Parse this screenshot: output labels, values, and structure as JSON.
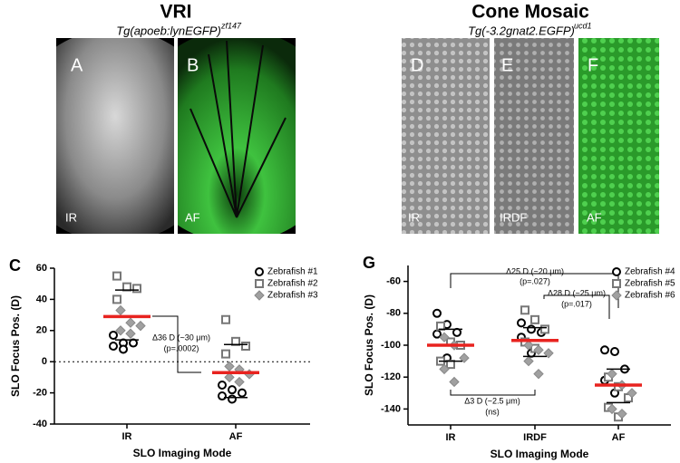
{
  "panels": {
    "vri": {
      "title": "VRI",
      "genotype": "Tg(apoeb:lynEGFP)",
      "allele": "zf147",
      "images": [
        {
          "letter": "A",
          "mode": "IR"
        },
        {
          "letter": "B",
          "mode": "AF"
        }
      ]
    },
    "cone": {
      "title": "Cone Mosaic",
      "genotype": "Tg(-3.2gnat2.EGFP)",
      "allele": "ucd1",
      "images": [
        {
          "letter": "D",
          "mode": "IR"
        },
        {
          "letter": "E",
          "mode": "IRDF"
        },
        {
          "letter": "F",
          "mode": "AF"
        }
      ]
    }
  },
  "chart_data": [
    {
      "type": "strip",
      "panel": "C",
      "ylabel": "SLO Focus Pos. (D)",
      "xlabel": "SLO Imaging Mode",
      "categories": [
        "IR",
        "AF"
      ],
      "ylim": [
        -40,
        60
      ],
      "yticks": [
        -40,
        -20,
        0,
        20,
        40,
        60
      ],
      "zero_line": true,
      "legend_position": "upper right",
      "series": [
        {
          "name": "Zebrafish #1",
          "marker": "circle",
          "color": "#000000",
          "values": [
            [
              17,
              12,
              12,
              10,
              8
            ],
            [
              -15,
              -18,
              -20,
              -22,
              -24
            ]
          ]
        },
        {
          "name": "Zebrafish #2",
          "marker": "square",
          "color": "#777777",
          "values": [
            [
              55,
              48,
              47,
              40
            ],
            [
              27,
              13,
              10,
              5
            ]
          ]
        },
        {
          "name": "Zebrafish #3",
          "marker": "diamond",
          "color": "#a0a0a0",
          "values": [
            [
              33,
              25,
              23,
              20,
              18
            ],
            [
              -3,
              -5,
              -8,
              -10,
              -13
            ]
          ]
        }
      ],
      "means": [
        29,
        -7
      ],
      "error_bars": [
        [
          14,
          46
        ],
        [
          -23,
          11
        ]
      ],
      "annotations": [
        "Δ36 D (~30 μm)",
        "(p=.0002)"
      ]
    },
    {
      "type": "strip",
      "panel": "G",
      "ylabel": "SLO Focus Pos. (D)",
      "xlabel": "SLO Imaging Mode",
      "categories": [
        "IR",
        "IRDF",
        "AF"
      ],
      "ylim": [
        -150,
        -50
      ],
      "yticks": [
        -140,
        -120,
        -100,
        -80,
        -60
      ],
      "zero_line": false,
      "legend_position": "upper right",
      "series": [
        {
          "name": "Zebrafish #4",
          "marker": "circle",
          "color": "#000000",
          "values": [
            [
              -80,
              -87,
              -92,
              -93,
              -108
            ],
            [
              -86,
              -90,
              -92,
              -95,
              -105
            ],
            [
              -103,
              -104,
              -115,
              -122,
              -130
            ]
          ]
        },
        {
          "name": "Zebrafish #5",
          "marker": "square",
          "color": "#777777",
          "values": [
            [
              -88,
              -98,
              -100,
              -110,
              -112
            ],
            [
              -78,
              -84,
              -90,
              -98,
              -102
            ],
            [
              -120,
              -126,
              -133,
              -139,
              -145
            ]
          ]
        },
        {
          "name": "Zebrafish #6",
          "marker": "diamond",
          "color": "#a0a0a0",
          "values": [
            [
              -95,
              -100,
              -108,
              -115,
              -123
            ],
            [
              -100,
              -103,
              -105,
              -110,
              -118
            ],
            [
              -118,
              -125,
              -130,
              -140,
              -143
            ]
          ]
        }
      ],
      "means": [
        -100,
        -97,
        -125
      ],
      "error_bars": [
        [
          -110,
          -90
        ],
        [
          -107,
          -89
        ],
        [
          -136,
          -115
        ]
      ],
      "annotations": [
        "Δ25 D (~20 μm)",
        "(p=.027)",
        "Δ28 D (~25 μm)",
        "(p=.017)",
        "Δ3 D (~2.5 μm)",
        "(ns)"
      ]
    }
  ]
}
